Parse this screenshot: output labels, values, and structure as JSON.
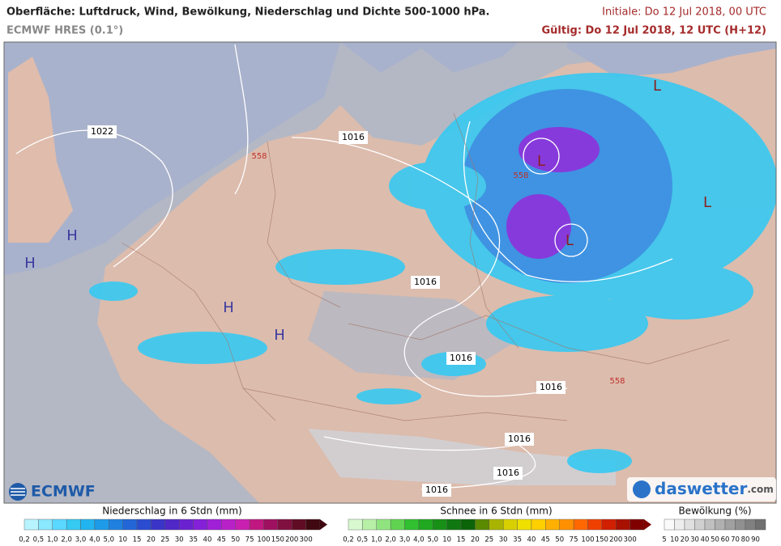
{
  "header": {
    "title": "Oberfläche: Luftdruck, Wind, Bewölkung, Niederschlag und Dichte 500-1000 hPa.",
    "model": "ECMWF HRES (0.1°)",
    "initial": "Initiale: Do 12 Jul 2018, 00 UTC",
    "valid": "Gültig: Do 12 Jul 2018, 12 UTC (H+12)"
  },
  "map": {
    "isobar_labels": [
      "1022",
      "1016",
      "1016",
      "1016",
      "1016",
      "1016",
      "1016",
      "1016"
    ],
    "thickness_labels": [
      "558",
      "558",
      "558"
    ],
    "pressure_centers": [
      "H",
      "H",
      "H",
      "H",
      "L",
      "L",
      "L",
      "L"
    ]
  },
  "logos": {
    "left": "ECMWF",
    "right": "daswetter",
    "right_suffix": ".com"
  },
  "legends": [
    {
      "title": "Niederschlag in 6 Stdn (mm)",
      "ticks": [
        "0,2",
        "0,5",
        "1,0",
        "2,0",
        "3,0",
        "4,0",
        "5,0",
        "10",
        "15",
        "20",
        "25",
        "30",
        "35",
        "40",
        "45",
        "50",
        "75",
        "100",
        "150",
        "200",
        "300"
      ]
    },
    {
      "title": "Schnee in 6 Stdn (mm)",
      "ticks": [
        "0,2",
        "0,5",
        "1,0",
        "2,0",
        "3,0",
        "4,0",
        "5,0",
        "10",
        "15",
        "20",
        "25",
        "30",
        "35",
        "40",
        "45",
        "50",
        "75",
        "100",
        "150",
        "200",
        "300"
      ]
    },
    {
      "title": "Bewölkung (%)",
      "ticks": [
        "5",
        "10",
        "20",
        "30",
        "40",
        "50",
        "60",
        "70",
        "80",
        "90"
      ]
    }
  ]
}
